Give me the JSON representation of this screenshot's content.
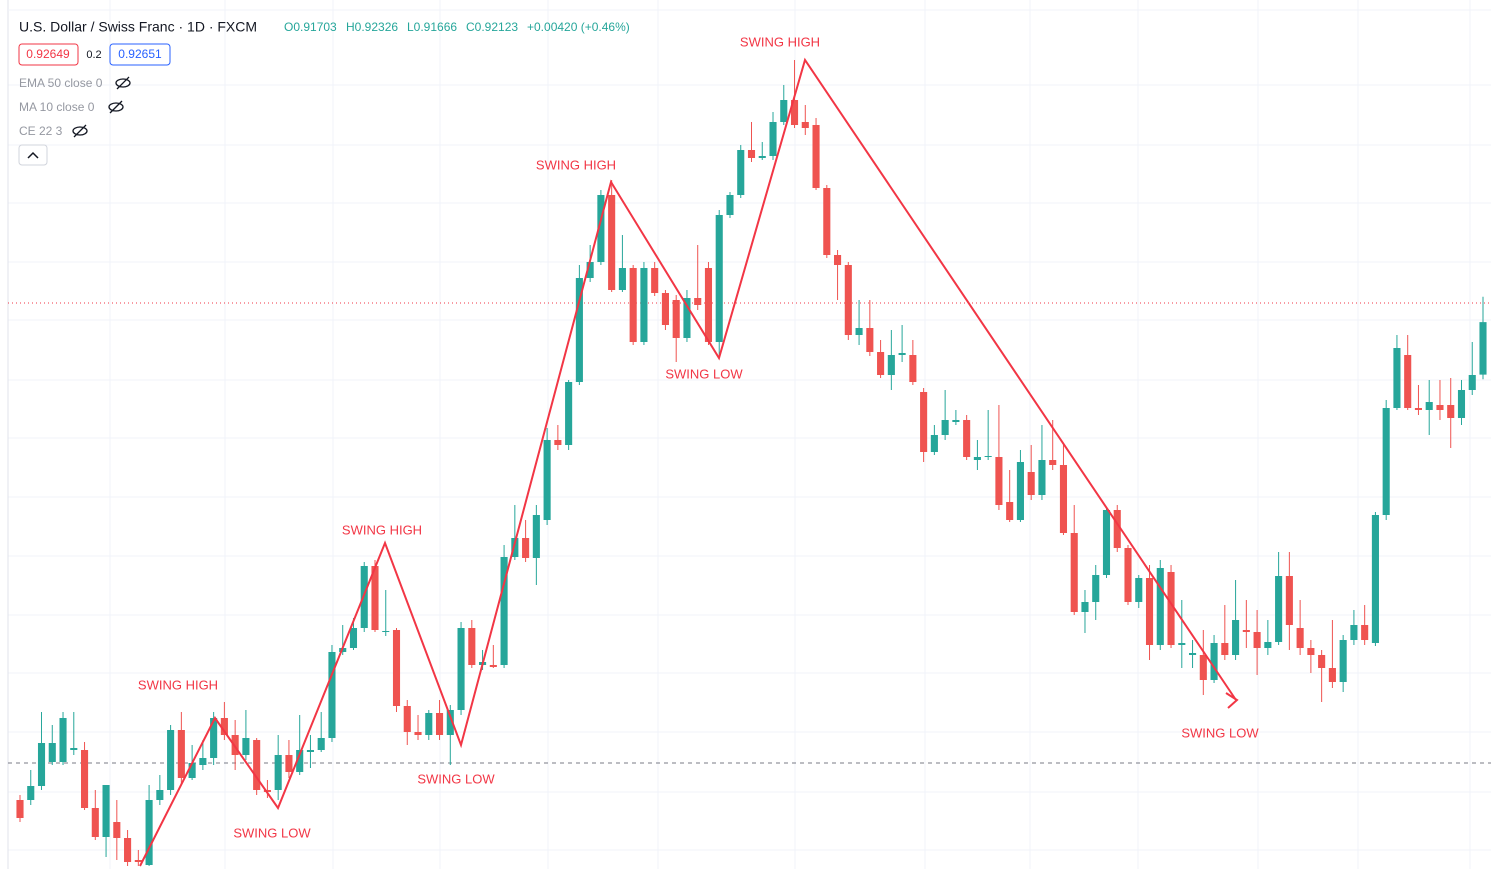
{
  "chart_data": {
    "type": "candlestick",
    "header": {
      "symbol": "U.S. Dollar / Swiss Franc · 1D · FXCM",
      "open": "O0.91703",
      "high": "H0.92326",
      "low": "L0.91666",
      "close": "C0.92123",
      "change": "+0.00420 (+0.46%)",
      "bid": "0.92649",
      "spread": "0.2",
      "ask": "0.92651"
    },
    "indicators": [
      "EMA 50 close 0",
      "MA 10 close 0",
      "CE 22 3"
    ],
    "annotations": [
      "SWING HIGH",
      "SWING LOW",
      "SWING HIGH",
      "SWING LOW",
      "SWING HIGH",
      "SWING LOW",
      "SWING HIGH",
      "SWING LOW"
    ],
    "up_color": "#26a69a",
    "down_color": "#ef5350",
    "candles": [
      [
        0.883,
        0.8834,
        0.88124,
        0.88156
      ],
      [
        0.883,
        0.8854,
        0.8826,
        0.88412
      ],
      [
        0.88412,
        0.89004,
        0.8838,
        0.88756
      ],
      [
        0.88604,
        0.889,
        0.8858,
        0.88756
      ],
      [
        0.88604,
        0.89004,
        0.8858,
        0.88956
      ],
      [
        0.887,
        0.89004,
        0.8866,
        0.88716
      ],
      [
        0.887,
        0.88764,
        0.8822,
        0.88236
      ],
      [
        0.88236,
        0.8838,
        0.8798,
        0.88004
      ],
      [
        0.88004,
        0.8842,
        0.87844,
        0.8842
      ],
      [
        0.88124,
        0.883,
        0.8782,
        0.87996
      ],
      [
        0.87996,
        0.8806,
        0.87772,
        0.87804
      ],
      [
        0.8782,
        0.879,
        0.87772,
        0.87804
      ],
      [
        0.8778,
        0.8842,
        0.87772,
        0.883
      ],
      [
        0.883,
        0.885,
        0.8826,
        0.8838
      ],
      [
        0.8838,
        0.889,
        0.8834,
        0.8886
      ],
      [
        0.8886,
        0.89004,
        0.8842,
        0.88476
      ],
      [
        0.88476,
        0.8874,
        0.8846,
        0.88596
      ],
      [
        0.8858,
        0.8878,
        0.8854,
        0.88636
      ],
      [
        0.88636,
        0.89004,
        0.8858,
        0.88956
      ],
      [
        0.88956,
        0.89084,
        0.8878,
        0.8882
      ],
      [
        0.8882,
        0.8894,
        0.8854,
        0.8866
      ],
      [
        0.8866,
        0.8902,
        0.8862,
        0.88796
      ],
      [
        0.8878,
        0.88796,
        0.8834,
        0.8838
      ],
      [
        0.8838,
        0.8846,
        0.88316,
        0.88364
      ],
      [
        0.8838,
        0.8882,
        0.883,
        0.8866
      ],
      [
        0.8866,
        0.8878,
        0.88476,
        0.88524
      ],
      [
        0.88524,
        0.8898,
        0.885,
        0.887
      ],
      [
        0.88684,
        0.8882,
        0.88556,
        0.887
      ],
      [
        0.887,
        0.89004,
        0.88684,
        0.88796
      ],
      [
        0.88796,
        0.8954,
        0.88764,
        0.89484
      ],
      [
        0.89484,
        0.897,
        0.8946,
        0.89516
      ],
      [
        0.89516,
        0.89756,
        0.895,
        0.89676
      ],
      [
        0.89676,
        0.90204,
        0.89644,
        0.90172
      ],
      [
        0.90172,
        0.9022,
        0.89644,
        0.8966
      ],
      [
        0.89644,
        0.8998,
        0.89612,
        0.89652
      ],
      [
        0.8966,
        0.89676,
        0.89004,
        0.89052
      ],
      [
        0.89052,
        0.891,
        0.8874,
        0.88844
      ],
      [
        0.88844,
        0.8898,
        0.8878,
        0.8882
      ],
      [
        0.8882,
        0.8902,
        0.8878,
        0.88996
      ],
      [
        0.88996,
        0.891,
        0.8878,
        0.8882
      ],
      [
        0.8882,
        0.8906,
        0.8858,
        0.8902
      ],
      [
        0.8902,
        0.89724,
        0.8898,
        0.89676
      ],
      [
        0.89676,
        0.8974,
        0.89356,
        0.8938
      ],
      [
        0.8938,
        0.895,
        0.8934,
        0.89404
      ],
      [
        0.8938,
        0.8954,
        0.89356,
        0.89364
      ],
      [
        0.8938,
        0.9034,
        0.89356,
        0.90244
      ],
      [
        0.90244,
        0.9066,
        0.9022,
        0.90396
      ],
      [
        0.90396,
        0.9054,
        0.90204,
        0.90236
      ],
      [
        0.90236,
        0.9066,
        0.9002,
        0.9058
      ],
      [
        0.9054,
        0.91276,
        0.905,
        0.9118
      ],
      [
        0.9118,
        0.913,
        0.911,
        0.9114
      ],
      [
        0.9114,
        0.9166,
        0.911,
        0.91644
      ],
      [
        0.91644,
        0.9258,
        0.9162,
        0.92476
      ],
      [
        0.92476,
        0.9274,
        0.92444,
        0.92604
      ],
      [
        0.92604,
        0.9318,
        0.9258,
        0.9314
      ],
      [
        0.9314,
        0.9326,
        0.92364,
        0.9238
      ],
      [
        0.9238,
        0.9282,
        0.92364,
        0.92556
      ],
      [
        0.92556,
        0.9258,
        0.9194,
        0.91964
      ],
      [
        0.91964,
        0.92604,
        0.9194,
        0.92556
      ],
      [
        0.92556,
        0.92604,
        0.92332,
        0.92356
      ],
      [
        0.92356,
        0.9238,
        0.9206,
        0.921
      ],
      [
        0.923,
        0.9234,
        0.91804,
        0.91996
      ],
      [
        0.91996,
        0.9238,
        0.91964,
        0.92316
      ],
      [
        0.92316,
        0.9274,
        0.9222,
        0.9226
      ],
      [
        0.92556,
        0.92604,
        0.9194,
        0.91964
      ],
      [
        0.91964,
        0.9302,
        0.9186,
        0.9298
      ],
      [
        0.9298,
        0.93164,
        0.92956,
        0.9314
      ],
      [
        0.9314,
        0.9354,
        0.93116,
        0.935
      ],
      [
        0.935,
        0.93724,
        0.93404,
        0.93436
      ],
      [
        0.93436,
        0.93564,
        0.9342,
        0.93452
      ],
      [
        0.93452,
        0.93804,
        0.9342,
        0.93724
      ],
      [
        0.93724,
        0.9402,
        0.937,
        0.939
      ],
      [
        0.939,
        0.9422,
        0.93676,
        0.937
      ],
      [
        0.93724,
        0.9386,
        0.9362,
        0.93676
      ],
      [
        0.937,
        0.93756,
        0.9318,
        0.93196
      ],
      [
        0.93196,
        0.9322,
        0.92636,
        0.9266
      ],
      [
        0.9266,
        0.927,
        0.923,
        0.9258
      ],
      [
        0.9258,
        0.92604,
        0.9198,
        0.9202
      ],
      [
        0.9202,
        0.923,
        0.9194,
        0.92076
      ],
      [
        0.92076,
        0.923,
        0.91852,
        0.91884
      ],
      [
        0.91884,
        0.9198,
        0.91676,
        0.917
      ],
      [
        0.917,
        0.9206,
        0.9158,
        0.9186
      ],
      [
        0.9186,
        0.921,
        0.91804,
        0.91876
      ],
      [
        0.9186,
        0.9198,
        0.9162,
        0.91644
      ],
      [
        0.91564,
        0.91596,
        0.91004,
        0.91084
      ],
      [
        0.91084,
        0.913,
        0.9106,
        0.9122
      ],
      [
        0.9122,
        0.9158,
        0.9118,
        0.9134
      ],
      [
        0.91324,
        0.9142,
        0.913,
        0.9134
      ],
      [
        0.9134,
        0.9138,
        0.9102,
        0.91044
      ],
      [
        0.9102,
        0.9118,
        0.9094,
        0.91044
      ],
      [
        0.91044,
        0.9142,
        0.9102,
        0.91052
      ],
      [
        0.91044,
        0.9146,
        0.9062,
        0.9066
      ],
      [
        0.90684,
        0.9094,
        0.90524,
        0.9054
      ],
      [
        0.9054,
        0.911,
        0.90524,
        0.91004
      ],
      [
        0.90924,
        0.9114,
        0.907,
        0.9074
      ],
      [
        0.9074,
        0.913,
        0.907,
        0.9102
      ],
      [
        0.9102,
        0.9134,
        0.9094,
        0.9098
      ],
      [
        0.9098,
        0.9114,
        0.9042,
        0.90436
      ],
      [
        0.90436,
        0.9066,
        0.8978,
        0.89804
      ],
      [
        0.89804,
        0.8998,
        0.89636,
        0.89884
      ],
      [
        0.89884,
        0.9018,
        0.8974,
        0.901
      ],
      [
        0.901,
        0.90636,
        0.90076,
        0.9062
      ],
      [
        0.9062,
        0.9066,
        0.90284,
        0.90316
      ],
      [
        0.90316,
        0.9034,
        0.8986,
        0.89884
      ],
      [
        0.89884,
        0.901,
        0.89836,
        0.90076
      ],
      [
        0.90076,
        0.9018,
        0.8942,
        0.8954
      ],
      [
        0.8954,
        0.9022,
        0.895,
        0.90156
      ],
      [
        0.90124,
        0.9018,
        0.89516,
        0.8954
      ],
      [
        0.8954,
        0.899,
        0.89356,
        0.89556
      ],
      [
        0.8946,
        0.8958,
        0.89356,
        0.89476
      ],
      [
        0.8946,
        0.8966,
        0.8914,
        0.8926
      ],
      [
        0.8926,
        0.8962,
        0.89236,
        0.89556
      ],
      [
        0.89556,
        0.8986,
        0.8942,
        0.8946
      ],
      [
        0.8946,
        0.9006,
        0.8942,
        0.8974
      ],
      [
        0.8966,
        0.899,
        0.89516,
        0.89644
      ],
      [
        0.89644,
        0.8982,
        0.893,
        0.89516
      ],
      [
        0.89516,
        0.8974,
        0.8946,
        0.89564
      ],
      [
        0.89564,
        0.90284,
        0.8954,
        0.90092
      ],
      [
        0.90092,
        0.90284,
        0.895,
        0.897
      ],
      [
        0.89676,
        0.899,
        0.8946,
        0.89516
      ],
      [
        0.89516,
        0.8958,
        0.89316,
        0.8946
      ],
      [
        0.8946,
        0.895,
        0.89084,
        0.89356
      ],
      [
        0.89356,
        0.8974,
        0.89196,
        0.89244
      ],
      [
        0.89244,
        0.8962,
        0.89164,
        0.8958
      ],
      [
        0.8958,
        0.8982,
        0.8954,
        0.897
      ],
      [
        0.897,
        0.8986,
        0.8954,
        0.8958
      ],
      [
        0.89556,
        0.90604,
        0.89532,
        0.9058
      ],
      [
        0.9058,
        0.915,
        0.9054,
        0.91436
      ],
      [
        0.91436,
        0.9202,
        0.9142,
        0.91916
      ],
      [
        0.9186,
        0.9202,
        0.9142,
        0.91436
      ],
      [
        0.91436,
        0.9162,
        0.9138,
        0.9142
      ],
      [
        0.9142,
        0.9166,
        0.9122,
        0.91484
      ],
      [
        0.9146,
        0.9166,
        0.9134,
        0.9142
      ],
      [
        0.9146,
        0.91676,
        0.91116,
        0.91356
      ],
      [
        0.91356,
        0.9166,
        0.913,
        0.9158
      ],
      [
        0.9158,
        0.91964,
        0.9154,
        0.917
      ],
      [
        0.91703,
        0.92326,
        0.91666,
        0.92123
      ]
    ]
  }
}
